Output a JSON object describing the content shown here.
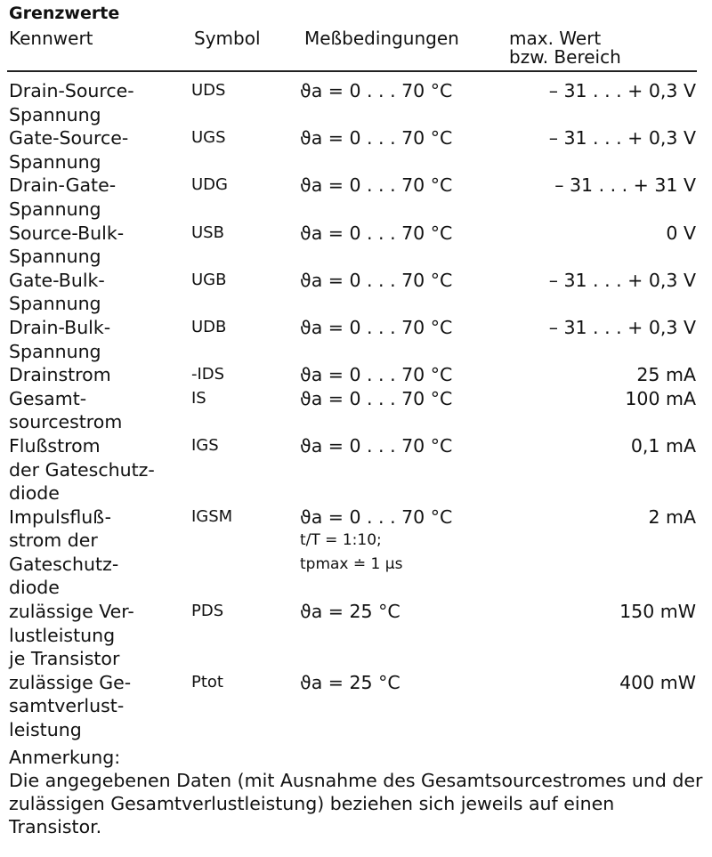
{
  "title": "Grenzwerte",
  "headers": {
    "kennwert": "Kennwert",
    "symbol": "Symbol",
    "bedingungen": "Meßbedingungen",
    "wert_1": "max. Wert",
    "wert_2": "bzw. Bereich"
  },
  "rows": [
    {
      "kennwert": [
        "Drain-Source-",
        "Spannung"
      ],
      "symbol": "UDS",
      "bedingungen": [
        "ϑa = 0 . . . 70 °C"
      ],
      "wert": "– 31 . . . + 0,3 V"
    },
    {
      "kennwert": [
        "Gate-Source-",
        "Spannung"
      ],
      "symbol": "UGS",
      "bedingungen": [
        "ϑa = 0 . . . 70 °C"
      ],
      "wert": "– 31 . . . + 0,3 V"
    },
    {
      "kennwert": [
        "Drain-Gate-",
        "Spannung"
      ],
      "symbol": "UDG",
      "bedingungen": [
        "ϑa = 0 . . . 70 °C"
      ],
      "wert": "– 31 . . . + 31 V"
    },
    {
      "kennwert": [
        "Source-Bulk-",
        "Spannung"
      ],
      "symbol": "USB",
      "bedingungen": [
        "ϑa = 0 . . . 70 °C"
      ],
      "wert": "0 V"
    },
    {
      "kennwert": [
        "Gate-Bulk-",
        "Spannung"
      ],
      "symbol": "UGB",
      "bedingungen": [
        "ϑa = 0 . . . 70 °C"
      ],
      "wert": "– 31 . . . + 0,3 V"
    },
    {
      "kennwert": [
        "Drain-Bulk-",
        "Spannung"
      ],
      "symbol": "UDB",
      "bedingungen": [
        "ϑa = 0 . . . 70 °C"
      ],
      "wert": "– 31 . . . + 0,3 V"
    },
    {
      "kennwert": [
        "Drainstrom"
      ],
      "symbol": "-IDS",
      "bedingungen": [
        "ϑa = 0 . . . 70 °C"
      ],
      "wert": "25 mA"
    },
    {
      "kennwert": [
        "Gesamt-",
        "sourcestrom"
      ],
      "symbol": "IS",
      "bedingungen": [
        "ϑa = 0 . . . 70 °C"
      ],
      "wert": "100 mA"
    },
    {
      "kennwert": [
        "Flußstrom",
        "der Gateschutz-",
        "diode"
      ],
      "symbol": "IGS",
      "bedingungen": [
        "ϑa = 0 . . . 70 °C"
      ],
      "wert": "0,1 mA"
    },
    {
      "kennwert": [
        "Impulsfluß-",
        "strom der",
        "Gateschutz-",
        "diode"
      ],
      "symbol": "IGSM",
      "bedingungen": [
        "ϑa = 0 . . . 70 °C",
        "t/T = 1:10;",
        "tpmax ≐ 1 µs"
      ],
      "wert": "2 mA"
    },
    {
      "kennwert": [
        "zulässige Ver-",
        "lustleistung",
        "je Transistor"
      ],
      "symbol": "PDS",
      "bedingungen": [
        "ϑa = 25 °C"
      ],
      "wert": "150 mW"
    },
    {
      "kennwert": [
        "zulässige Ge-",
        "samtverlust-",
        "leistung"
      ],
      "symbol": "Ptot",
      "bedingungen": [
        "ϑa = 25 °C"
      ],
      "wert": "400 mW"
    }
  ],
  "note": {
    "label": "Anmerkung:",
    "text": "Die angegebenen Daten (mit Ausnahme des Gesamtsourcestromes und der zulässigen Gesamtverlustleistung) beziehen sich jeweils auf einen Transistor."
  }
}
